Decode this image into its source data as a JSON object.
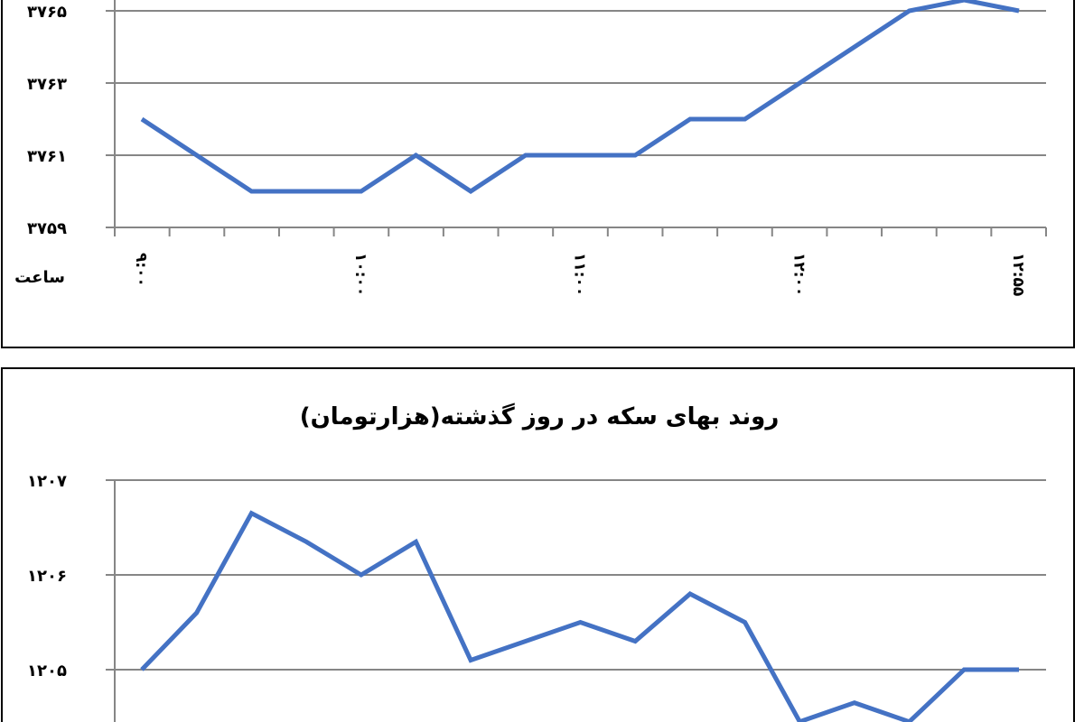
{
  "chart_data": [
    {
      "type": "line",
      "title": "",
      "xlabel": "ساعت",
      "ylabel": "",
      "grid": true,
      "x_tick_labels": [
        "۹:۰۰",
        "۱۰:۰۰",
        "۱۱:۰۰",
        "۱۲:۰۰",
        "۱۲:۵۵"
      ],
      "y_tick_labels": [
        "۳۷۶۵",
        "۳۷۶۳",
        "۳۷۶۱",
        "۳۷۵۹"
      ],
      "ylim": [
        3759,
        3765
      ],
      "series": [
        {
          "values": [
            3762.0,
            3761.0,
            3760.0,
            3760.0,
            3760.0,
            3761.0,
            3760.0,
            3761.0,
            3761.0,
            3761.0,
            3762.0,
            3762.0,
            3763.0,
            3764.0,
            3765.0,
            3765.3,
            3765.0
          ],
          "color": "#4472C4"
        }
      ]
    },
    {
      "type": "line",
      "title": "روند بهای سکه در روز گذشته(هزارتومان)",
      "xlabel": "",
      "ylabel": "",
      "grid": true,
      "y_tick_labels": [
        "۱۲۰۷",
        "۱۲۰۶",
        "۱۲۰۵"
      ],
      "ylim": [
        1204.5,
        1207
      ],
      "series": [
        {
          "values": [
            1205.0,
            1205.6,
            1206.65,
            1206.35,
            1206.0,
            1206.35,
            1205.1,
            1205.3,
            1205.5,
            1205.3,
            1205.8,
            1205.5,
            1204.45,
            1204.65,
            1204.45,
            1205.0,
            1205.0
          ],
          "color": "#4472C4"
        }
      ]
    }
  ]
}
